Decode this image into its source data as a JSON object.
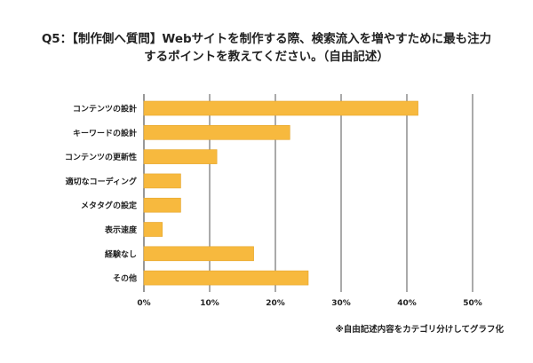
{
  "title_line1": "Q5：【制作側へ質問】Webサイトを制作する際、検索流入を増やすために最も注力",
  "title_line2": "するポイントを教えてください。（自由記述）",
  "footnote": "※自由記述内容をカテゴリ分けしてグラフ化",
  "colors": {
    "bar": "#F7B93E",
    "bar_edge": "#E5A52A",
    "grid": "#555555"
  },
  "chart_data": {
    "type": "bar",
    "orientation": "horizontal",
    "categories": [
      "コンテンツの設計",
      "キーワードの設計",
      "コンテンツの更新性",
      "適切なコーディング",
      "メタタグの設定",
      "表示速度",
      "経験なし",
      "その他"
    ],
    "values": [
      41.7,
      22.2,
      11.1,
      5.6,
      5.6,
      2.8,
      16.7,
      25.0
    ],
    "xlim": [
      0,
      50
    ],
    "ticks": [
      0,
      10,
      20,
      30,
      40,
      50
    ],
    "tick_labels": [
      "0%",
      "10%",
      "20%",
      "30%",
      "40%",
      "50%"
    ],
    "grid": true
  }
}
